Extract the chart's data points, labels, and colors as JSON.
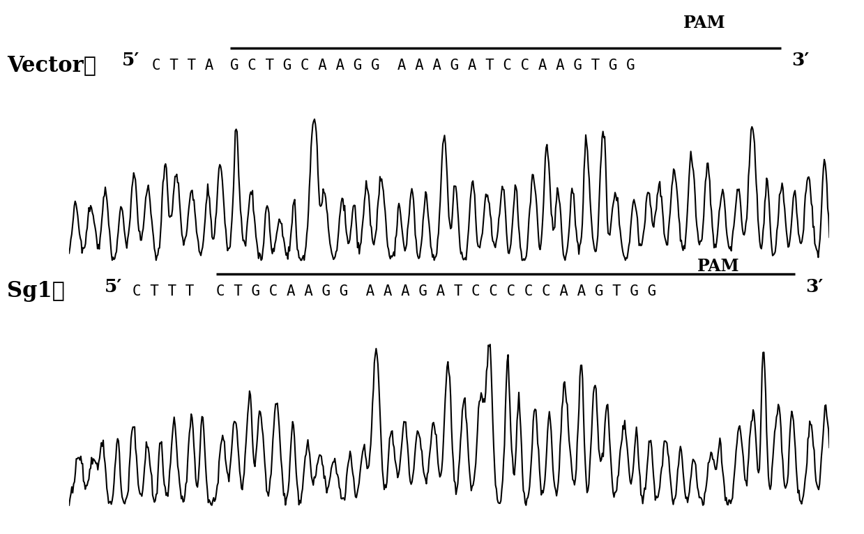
{
  "vector_label": "Vector：",
  "vector_5prime": "5′",
  "vector_3prime": "3′",
  "vector_seq_prefix": "C T T A",
  "vector_seq_overline": "G C T G C A A G G A A A G A T C C A A G T G G",
  "vector_pam": "PAM",
  "sg1_label": "Sg1：",
  "sg1_5prime": "5′",
  "sg1_3prime": "3′",
  "sg1_seq_prefix": "C T T T",
  "sg1_seq_overline": "C T G C A A G G A A A G A T C C C C C A A G T G G",
  "sg1_pam": "PAM",
  "bg_color": "#ffffff",
  "line_color": "#000000"
}
